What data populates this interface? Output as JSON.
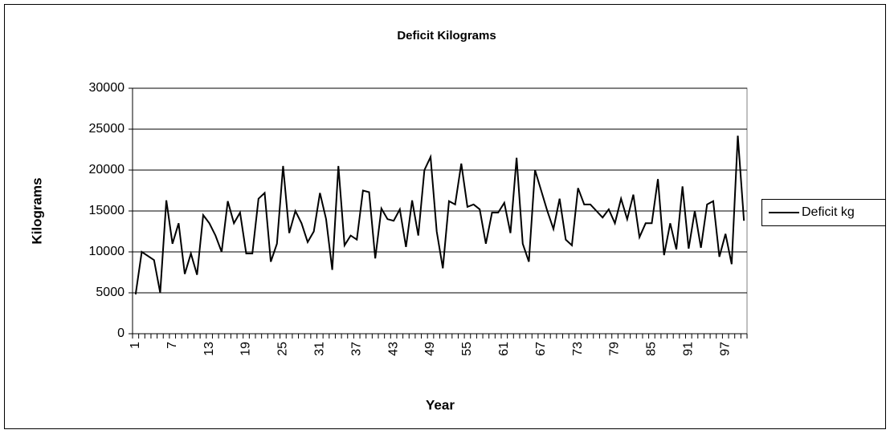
{
  "chart_data": {
    "type": "line",
    "title": "Deficit Kilograms",
    "x_label": "Year",
    "y_label": "Kilograms",
    "categories": [
      1,
      null,
      null,
      null,
      null,
      null,
      7,
      null,
      null,
      null,
      null,
      null,
      13,
      null,
      null,
      null,
      null,
      null,
      19,
      null,
      null,
      null,
      null,
      null,
      25,
      null,
      null,
      null,
      null,
      null,
      31,
      null,
      null,
      null,
      null,
      null,
      37,
      null,
      null,
      null,
      null,
      null,
      43,
      null,
      null,
      null,
      null,
      null,
      49,
      null,
      null,
      null,
      null,
      null,
      55,
      null,
      null,
      null,
      null,
      null,
      61,
      null,
      null,
      null,
      null,
      null,
      67,
      null,
      null,
      null,
      null,
      null,
      73,
      null,
      null,
      null,
      null,
      null,
      79,
      null,
      null,
      null,
      null,
      null,
      85,
      null,
      null,
      null,
      null,
      null,
      91,
      null,
      null,
      null,
      null,
      null,
      97,
      null,
      null,
      null
    ],
    "series": [
      {
        "name": "Deficit kg",
        "color": "#000000",
        "values": [
          4800,
          10000,
          9500,
          9000,
          5000,
          16300,
          11000,
          13500,
          7300,
          9800,
          7200,
          14500,
          13500,
          12000,
          10000,
          16200,
          13500,
          14800,
          9800,
          9800,
          16500,
          17200,
          8800,
          11000,
          20500,
          12300,
          15000,
          13500,
          11200,
          12500,
          17200,
          14000,
          7800,
          20500,
          10800,
          12000,
          11500,
          17500,
          17300,
          9200,
          15300,
          14000,
          13800,
          15200,
          10600,
          16300,
          12000,
          20000,
          21600,
          12500,
          8000,
          16200,
          15800,
          20800,
          15500,
          15800,
          15200,
          11000,
          14800,
          14800,
          16000,
          12300,
          21500,
          11000,
          8800,
          20000,
          17500,
          15000,
          12800,
          16500,
          11500,
          10800,
          17800,
          15800,
          15800,
          15000,
          14200,
          15200,
          13500,
          16500,
          14000,
          17000,
          11800,
          13500,
          13500,
          18900,
          9600,
          13500,
          10300,
          18000,
          10400,
          15000,
          10500,
          15800,
          16200,
          9400,
          12200,
          8500,
          24200,
          13800
        ]
      }
    ],
    "ylim": [
      0,
      30000
    ],
    "yticks": [
      0,
      5000,
      10000,
      15000,
      20000,
      25000,
      30000
    ],
    "grid": true,
    "legend": "right"
  }
}
